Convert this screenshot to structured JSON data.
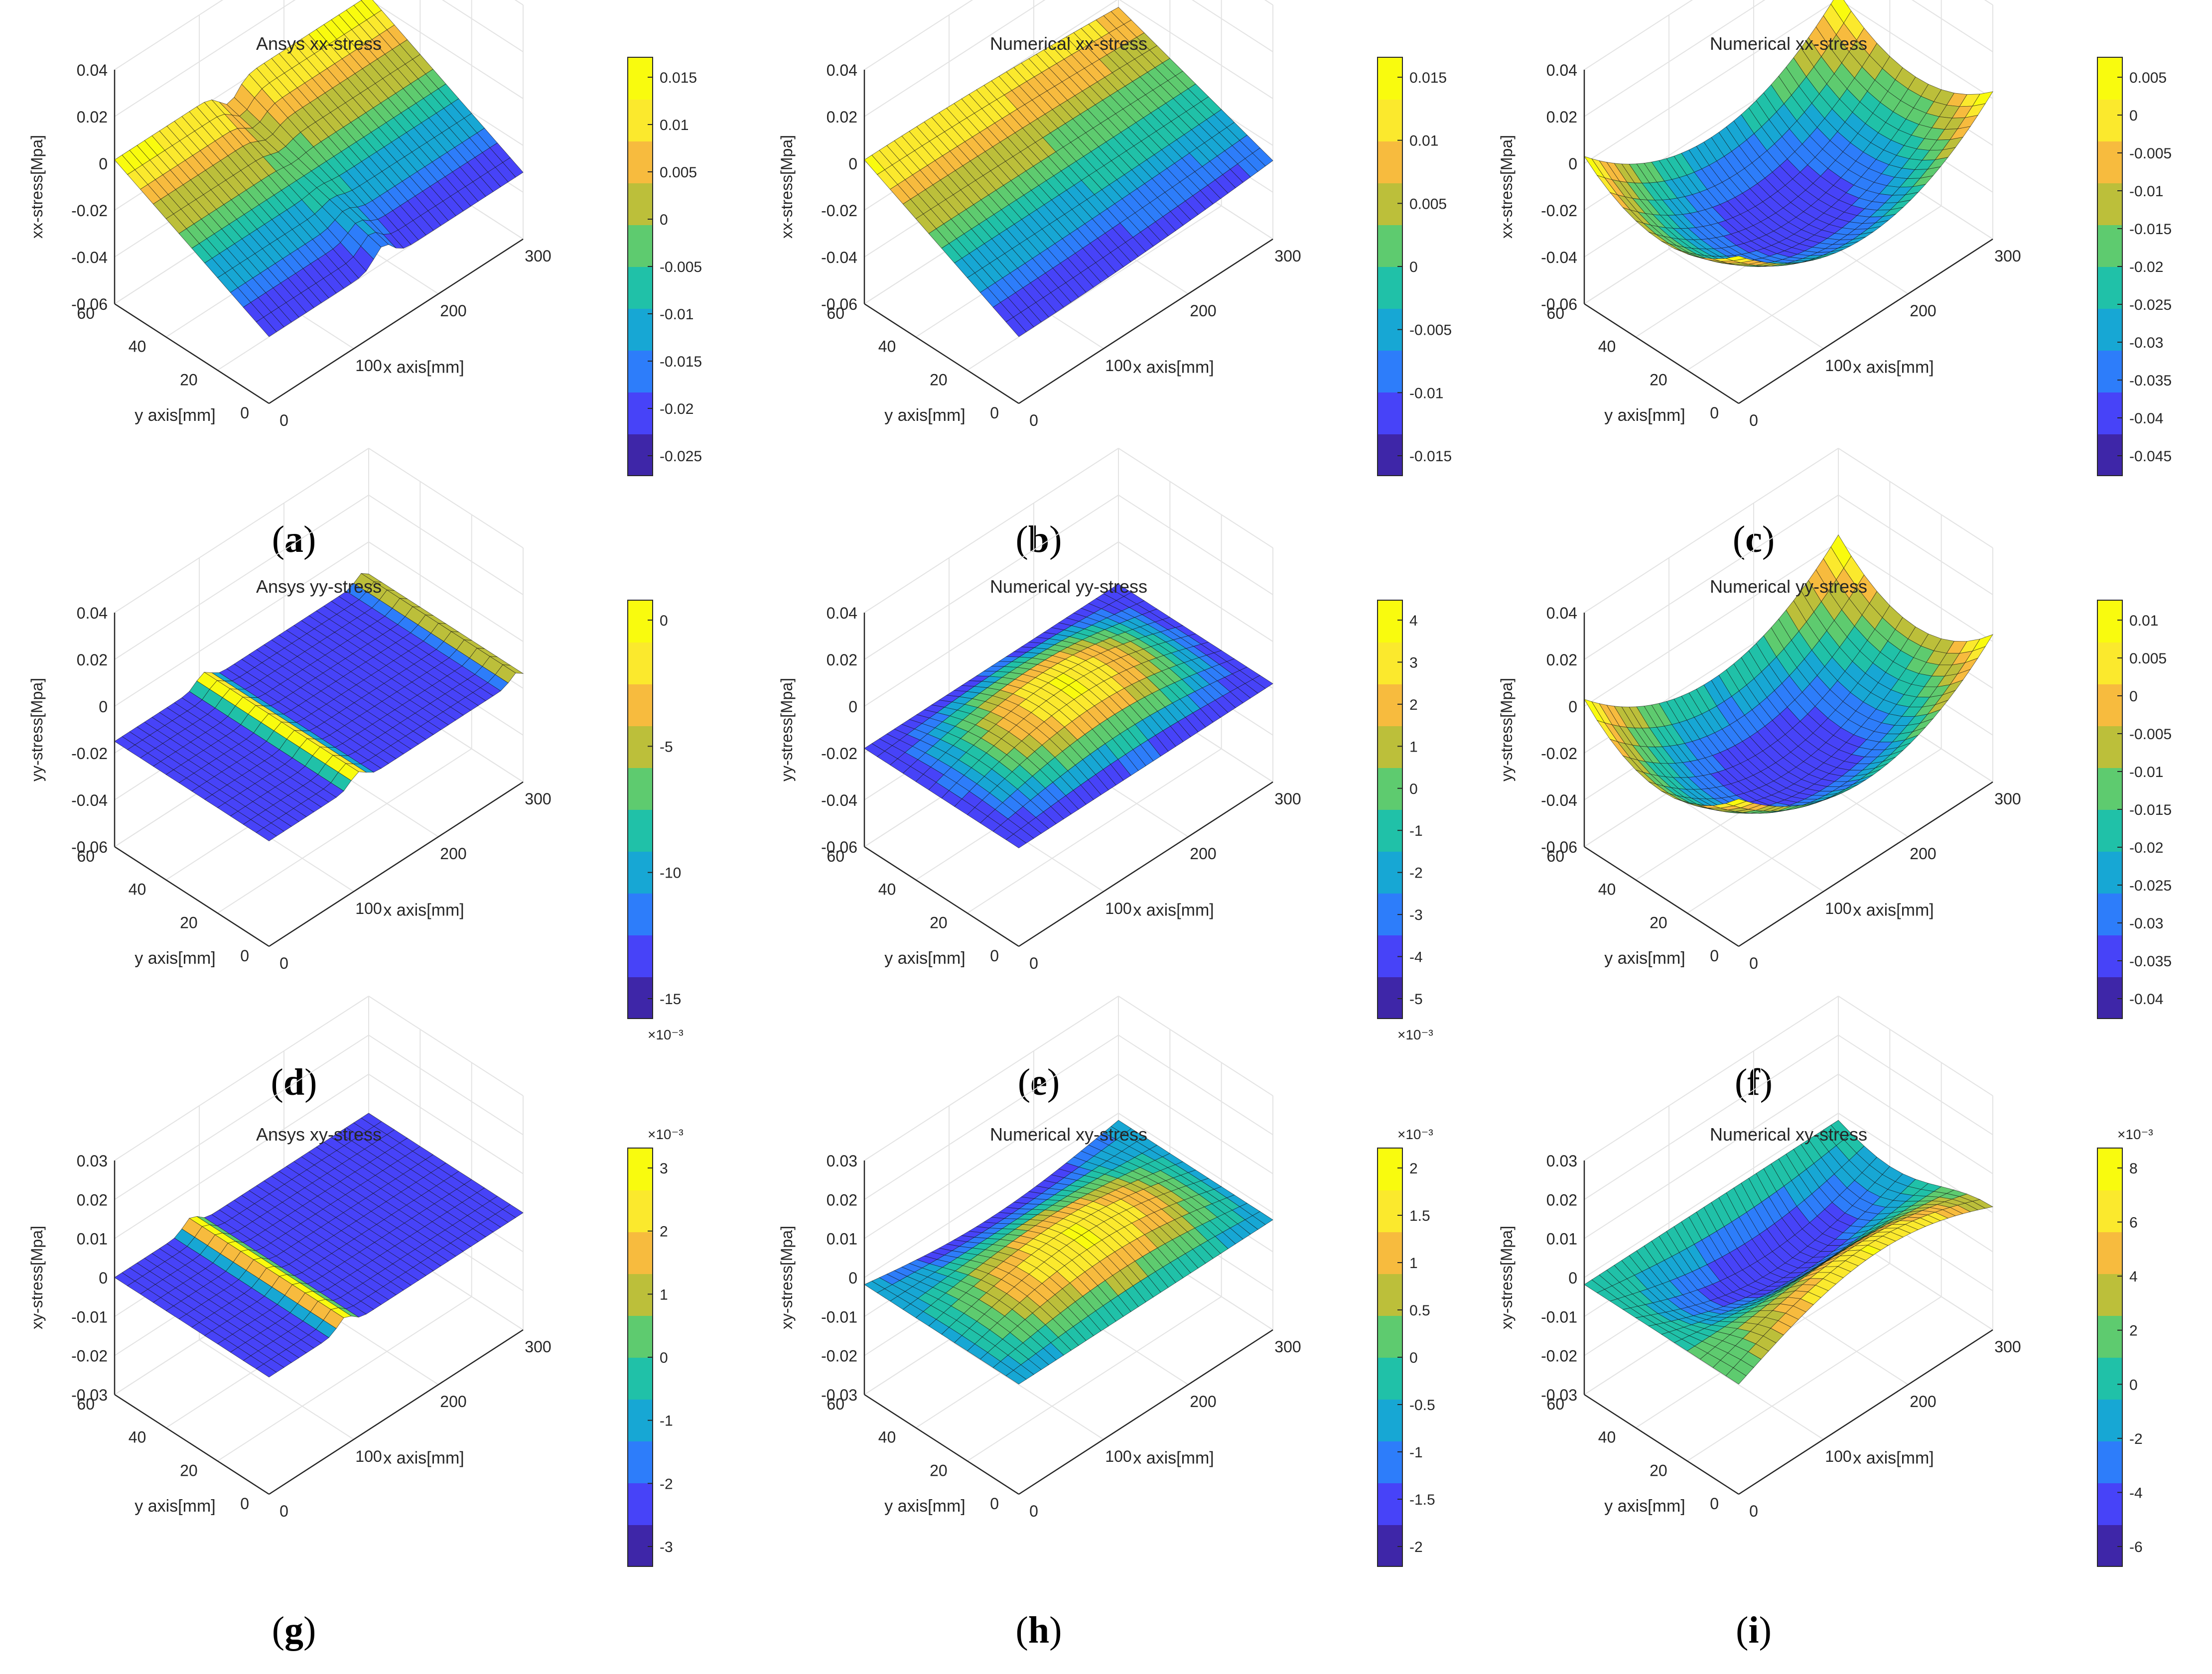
{
  "figure": {
    "panels": [
      {
        "label": "a",
        "title": "Ansys xx-stress",
        "zlabel": "xx-stress[Mpa]",
        "zticks": [
          "0.04",
          "0.02",
          "0",
          "-0.02",
          "-0.04",
          "-0.06"
        ],
        "cbar": {
          "ticks": [
            "0.015",
            "0.01",
            "0.005",
            "0",
            "-0.005",
            "-0.01",
            "-0.015",
            "-0.02",
            "-0.025"
          ],
          "exponent": ""
        }
      },
      {
        "label": "b",
        "title": "Numerical xx-stress",
        "zlabel": "xx-stress[Mpa]",
        "zticks": [
          "0.04",
          "0.02",
          "0",
          "-0.02",
          "-0.04",
          "-0.06"
        ],
        "cbar": {
          "ticks": [
            "0.015",
            "0.01",
            "0.005",
            "0",
            "-0.005",
            "-0.01",
            "-0.015"
          ],
          "exponent": ""
        }
      },
      {
        "label": "c",
        "title": "Numerical xx-stress",
        "zlabel": "xx-stress[Mpa]",
        "zticks": [
          "0.04",
          "0.02",
          "0",
          "-0.02",
          "-0.04",
          "-0.06"
        ],
        "cbar": {
          "ticks": [
            "0.005",
            "0",
            "-0.005",
            "-0.01",
            "-0.015",
            "-0.02",
            "-0.025",
            "-0.03",
            "-0.035",
            "-0.04",
            "-0.045"
          ],
          "exponent": ""
        }
      },
      {
        "label": "d",
        "title": "Ansys yy-stress",
        "zlabel": "yy-stress[Mpa]",
        "zticks": [
          "0.04",
          "0.02",
          "0",
          "-0.02",
          "-0.04",
          "-0.06"
        ],
        "cbar": {
          "ticks": [
            "0",
            "-5",
            "-10",
            "-15"
          ],
          "exponent": "×10⁻³"
        }
      },
      {
        "label": "e",
        "title": "Numerical yy-stress",
        "zlabel": "yy-stress[Mpa]",
        "zticks": [
          "0.04",
          "0.02",
          "0",
          "-0.02",
          "-0.04",
          "-0.06"
        ],
        "cbar": {
          "ticks": [
            "4",
            "3",
            "2",
            "1",
            "0",
            "-1",
            "-2",
            "-3",
            "-4",
            "-5"
          ],
          "exponent": "×10⁻³"
        }
      },
      {
        "label": "f",
        "title": "Numerical yy-stress",
        "zlabel": "yy-stress[Mpa]",
        "zticks": [
          "0.04",
          "0.02",
          "0",
          "-0.02",
          "-0.04",
          "-0.06"
        ],
        "cbar": {
          "ticks": [
            "0.01",
            "0.005",
            "0",
            "-0.005",
            "-0.01",
            "-0.015",
            "-0.02",
            "-0.025",
            "-0.03",
            "-0.035",
            "-0.04"
          ],
          "exponent": ""
        }
      },
      {
        "label": "g",
        "title": "Ansys xy-stress",
        "zlabel": "xy-stress[Mpa]",
        "zticks": [
          "0.03",
          "0.02",
          "0.01",
          "0",
          "-0.01",
          "-0.02",
          "-0.03"
        ],
        "cbar": {
          "ticks": [
            "3",
            "2",
            "1",
            "0",
            "-1",
            "-2",
            "-3"
          ],
          "exponent": "×10⁻³"
        }
      },
      {
        "label": "h",
        "title": "Numerical xy-stress",
        "zlabel": "xy-stress[Mpa]",
        "zticks": [
          "0.03",
          "0.02",
          "0.01",
          "0",
          "-0.01",
          "-0.02",
          "-0.03"
        ],
        "cbar": {
          "ticks": [
            "2",
            "1.5",
            "1",
            "0.5",
            "0",
            "-0.5",
            "-1",
            "-1.5",
            "-2"
          ],
          "exponent": "×10⁻³"
        }
      },
      {
        "label": "i",
        "title": "Numerical xy-stress",
        "zlabel": "xy-stress[Mpa]",
        "zticks": [
          "0.03",
          "0.02",
          "0.01",
          "0",
          "-0.01",
          "-0.02",
          "-0.03"
        ],
        "cbar": {
          "ticks": [
            "8",
            "6",
            "4",
            "2",
            "0",
            "-2",
            "-4",
            "-6"
          ],
          "exponent": "×10⁻³"
        }
      }
    ],
    "common": {
      "xlabel": "x axis[mm]",
      "ylabel": "y axis[mm]",
      "xticks": [
        "0",
        "100",
        "200",
        "300"
      ],
      "yticks": [
        "0",
        "20",
        "40",
        "60"
      ]
    },
    "colormap": [
      "#3e26a8",
      "#4743f8",
      "#2d7dfa",
      "#17a7d4",
      "#20c1a8",
      "#5ecb6f",
      "#bcbf3a",
      "#f7bb3e",
      "#fbe92d",
      "#f9fb0e"
    ]
  },
  "chart_data": [
    {
      "type": "surface",
      "title": "Ansys xx-stress",
      "xlabel": "x axis[mm]",
      "ylabel": "y axis[mm]",
      "zlabel": "xx-stress[Mpa]",
      "xlim": [
        0,
        300
      ],
      "ylim": [
        0,
        60
      ],
      "zlim": [
        -0.06,
        0.04
      ],
      "clim": [
        -0.027,
        0.017
      ]
    },
    {
      "type": "surface",
      "title": "Numerical xx-stress",
      "xlabel": "x axis[mm]",
      "ylabel": "y axis[mm]",
      "zlabel": "xx-stress[Mpa]",
      "xlim": [
        0,
        300
      ],
      "ylim": [
        0,
        60
      ],
      "zlim": [
        -0.06,
        0.04
      ],
      "clim": [
        -0.017,
        0.017
      ]
    },
    {
      "type": "surface",
      "title": "Numerical xx-stress",
      "xlabel": "x axis[mm]",
      "ylabel": "y axis[mm]",
      "zlabel": "xx-stress[Mpa]",
      "xlim": [
        0,
        300
      ],
      "ylim": [
        0,
        60
      ],
      "zlim": [
        -0.06,
        0.04
      ],
      "clim": [
        -0.049,
        0.009
      ]
    },
    {
      "type": "surface",
      "title": "Ansys yy-stress",
      "xlabel": "x axis[mm]",
      "ylabel": "y axis[mm]",
      "zlabel": "yy-stress[Mpa]",
      "xlim": [
        0,
        300
      ],
      "ylim": [
        0,
        60
      ],
      "zlim": [
        -0.06,
        0.04
      ],
      "clim": [
        -0.0165,
        0.001
      ]
    },
    {
      "type": "surface",
      "title": "Numerical yy-stress",
      "xlabel": "x axis[mm]",
      "ylabel": "y axis[mm]",
      "zlabel": "yy-stress[Mpa]",
      "xlim": [
        0,
        300
      ],
      "ylim": [
        0,
        60
      ],
      "zlim": [
        -0.06,
        0.04
      ],
      "clim": [
        -0.0057,
        0.0041
      ]
    },
    {
      "type": "surface",
      "title": "Numerical yy-stress",
      "xlabel": "x axis[mm]",
      "ylabel": "y axis[mm]",
      "zlabel": "yy-stress[Mpa]",
      "xlim": [
        0,
        300
      ],
      "ylim": [
        0,
        60
      ],
      "zlim": [
        -0.06,
        0.04
      ],
      "clim": [
        -0.044,
        0.013
      ]
    },
    {
      "type": "surface",
      "title": "Ansys xy-stress",
      "xlabel": "x axis[mm]",
      "ylabel": "y axis[mm]",
      "zlabel": "xy-stress[Mpa]",
      "xlim": [
        0,
        300
      ],
      "ylim": [
        0,
        60
      ],
      "zlim": [
        -0.03,
        0.03
      ],
      "clim": [
        -0.0034,
        0.0034
      ]
    },
    {
      "type": "surface",
      "title": "Numerical xy-stress",
      "xlabel": "x axis[mm]",
      "ylabel": "y axis[mm]",
      "zlabel": "xy-stress[Mpa]",
      "xlim": [
        0,
        300
      ],
      "ylim": [
        0,
        60
      ],
      "zlim": [
        -0.03,
        0.03
      ],
      "clim": [
        -0.0024,
        0.0024
      ]
    },
    {
      "type": "surface",
      "title": "Numerical xy-stress",
      "xlabel": "x axis[mm]",
      "ylabel": "y axis[mm]",
      "zlabel": "xy-stress[Mpa]",
      "xlim": [
        0,
        300
      ],
      "ylim": [
        0,
        60
      ],
      "zlim": [
        -0.03,
        0.03
      ],
      "clim": [
        -0.0065,
        0.009
      ]
    }
  ]
}
